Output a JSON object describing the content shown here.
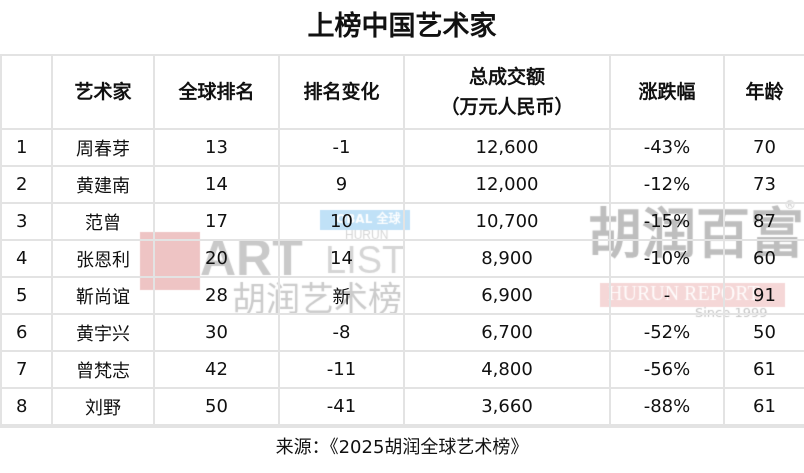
{
  "title": "上榜中国艺术家",
  "headers": [
    "",
    "艺术家",
    "全球排名",
    "排名变化",
    "总成交额\n（万元人民币）",
    "涨跌幅",
    "年龄"
  ],
  "header_line1": "总成交额",
  "header_line2": "（万元人民币）",
  "rows": [
    [
      "1",
      "周春芽",
      "13",
      "-1",
      "12,600",
      "-43%",
      "70"
    ],
    [
      "2",
      "黄建南",
      "14",
      "9",
      "12,000",
      "-12%",
      "73"
    ],
    [
      "3",
      "范曾",
      "17",
      "10",
      "10,700",
      "-15%",
      "87"
    ],
    [
      "4",
      "张恩利",
      "20",
      "14",
      "8,900",
      "-10%",
      "60"
    ],
    [
      "5",
      "靳尚谊",
      "28",
      "新",
      "6,900",
      "-",
      "91"
    ],
    [
      "6",
      "黄宇兴",
      "30",
      "-8",
      "6,700",
      "-52%",
      "50"
    ],
    [
      "7",
      "曾梵志",
      "42",
      "-11",
      "4,800",
      "-56%",
      "61"
    ],
    [
      "8",
      "刘野",
      "50",
      "-41",
      "3,660",
      "-88%",
      "61"
    ]
  ],
  "footer": "来源：《2025胡润全球艺术榜》",
  "watermarks": {
    "art": "ART",
    "list": "HURUN LIST",
    "art_cn": "胡润艺术榜",
    "global": "OBAL 全球",
    "hurun_cn": "胡润百富",
    "report": "HURUN REPORT",
    "since": "Since 1999",
    "reg": "®"
  }
}
